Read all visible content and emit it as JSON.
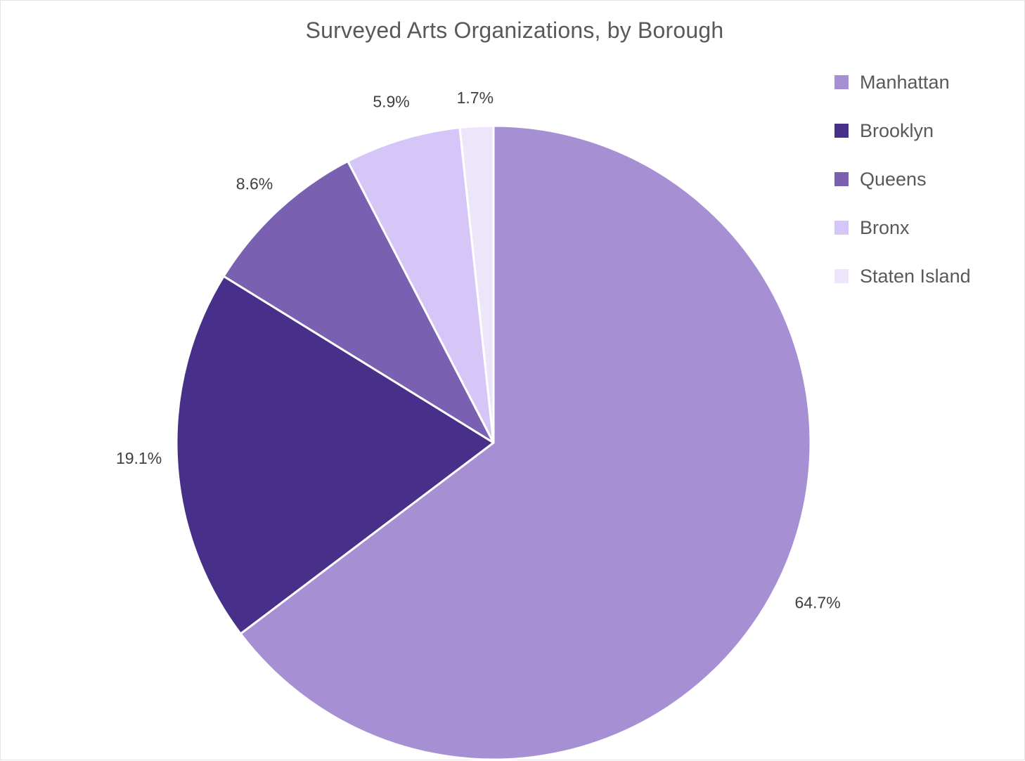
{
  "chart_data": {
    "type": "pie",
    "title": "Surveyed Arts Organizations, by Borough",
    "categories": [
      "Manhattan",
      "Brooklyn",
      "Queens",
      "Bronx",
      "Staten Island"
    ],
    "values": [
      64.7,
      19.1,
      8.6,
      5.9,
      1.7
    ],
    "labels": [
      "64.7%",
      "19.1%",
      "8.6%",
      "5.9%",
      "1.7%"
    ],
    "colors": [
      "#a78fd3",
      "#48308a",
      "#7960b0",
      "#d6c6f7",
      "#ede6fb"
    ],
    "start_angle": "12 o'clock",
    "direction": "clockwise",
    "legend_position": "right"
  }
}
